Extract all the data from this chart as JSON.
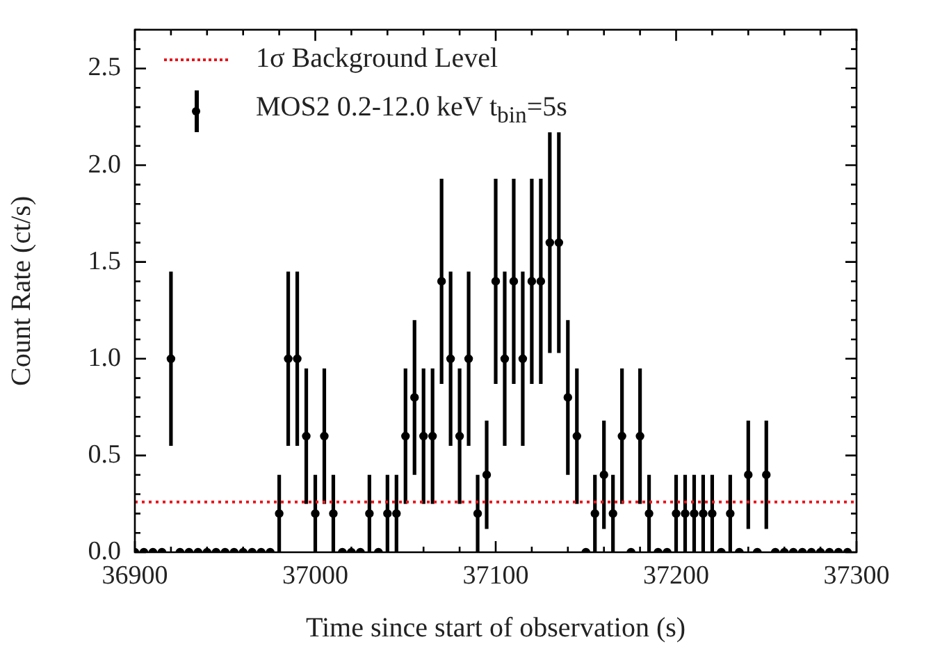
{
  "chart_data": {
    "type": "scatter",
    "xlabel": "Time since start of observation (s)",
    "ylabel": "Count Rate (ct/s)",
    "xlim": [
      36900,
      37300
    ],
    "xticks": [
      36900,
      37000,
      37100,
      37200,
      37300
    ],
    "ylim": [
      0,
      2.7
    ],
    "yticks": [
      {
        "value": 0,
        "label": "0.0"
      },
      0.5,
      {
        "value": 1,
        "label": "1.0"
      },
      1.5,
      {
        "value": 2,
        "label": "2.0"
      },
      2.5
    ],
    "grid": false,
    "legend": "top left",
    "marker": "circle",
    "series": [
      {
        "name": "MOS2 0.2-12.0 keV t$_{bin}$=5s",
        "color": "#000000",
        "x": [
          36900,
          36905,
          36910,
          36915,
          36920,
          36925,
          36930,
          36935,
          36940,
          36945,
          36950,
          36955,
          36960,
          36965,
          36970,
          36975,
          36980,
          36985,
          36990,
          36995,
          37000,
          37005,
          37010,
          37015,
          37020,
          37025,
          37030,
          37035,
          37040,
          37045,
          37050,
          37055,
          37060,
          37065,
          37070,
          37075,
          37080,
          37085,
          37090,
          37095,
          37100,
          37105,
          37110,
          37115,
          37120,
          37125,
          37130,
          37135,
          37140,
          37145,
          37150,
          37155,
          37160,
          37165,
          37170,
          37175,
          37180,
          37185,
          37190,
          37195,
          37200,
          37205,
          37210,
          37215,
          37220,
          37225,
          37230,
          37235,
          37240,
          37245,
          37250,
          37255,
          37260,
          37265,
          37270,
          37275,
          37280,
          37285,
          37290,
          37295
        ],
        "values": [
          0,
          0,
          0,
          0,
          1.0,
          0,
          0,
          0,
          0,
          0,
          0,
          0,
          0,
          0,
          0,
          0,
          0.2,
          1.0,
          1.0,
          0.6,
          0.2,
          0.6,
          0.2,
          0,
          0,
          0,
          0.2,
          0,
          0.2,
          0.2,
          0.6,
          0.8,
          0.6,
          0.6,
          1.4,
          1.0,
          0.6,
          1.0,
          0.2,
          0.4,
          1.4,
          1.0,
          1.4,
          1.0,
          1.4,
          1.4,
          1.6,
          1.6,
          0.8,
          0.6,
          0,
          0.2,
          0.4,
          0.2,
          0.6,
          0,
          0.6,
          0.2,
          0,
          0,
          0.2,
          0.2,
          0.2,
          0.2,
          0.2,
          0,
          0.2,
          0,
          0.4,
          0,
          0.4,
          0,
          0,
          0,
          0,
          0,
          0,
          0,
          0,
          0
        ],
        "errors": [
          null,
          null,
          null,
          null,
          0.45,
          null,
          null,
          null,
          null,
          null,
          null,
          null,
          null,
          null,
          null,
          null,
          0.2,
          0.45,
          0.45,
          0.35,
          0.2,
          0.35,
          0.2,
          null,
          null,
          null,
          0.2,
          null,
          0.2,
          0.2,
          0.35,
          0.4,
          0.35,
          0.35,
          0.53,
          0.45,
          0.35,
          0.45,
          0.2,
          0.28,
          0.53,
          0.45,
          0.53,
          0.45,
          0.53,
          0.53,
          0.57,
          0.57,
          0.4,
          0.35,
          null,
          0.2,
          0.28,
          0.2,
          0.35,
          null,
          0.35,
          0.2,
          null,
          null,
          0.2,
          0.2,
          0.2,
          0.2,
          0.2,
          null,
          0.2,
          null,
          0.28,
          null,
          0.28,
          null,
          null,
          null,
          null,
          null,
          null,
          null,
          null,
          null
        ]
      }
    ],
    "ref_lines": [
      {
        "axis": "y",
        "value": 0.26,
        "label": "1σ Background Level",
        "color": "#e8141b",
        "line_style": "dotted"
      }
    ]
  }
}
